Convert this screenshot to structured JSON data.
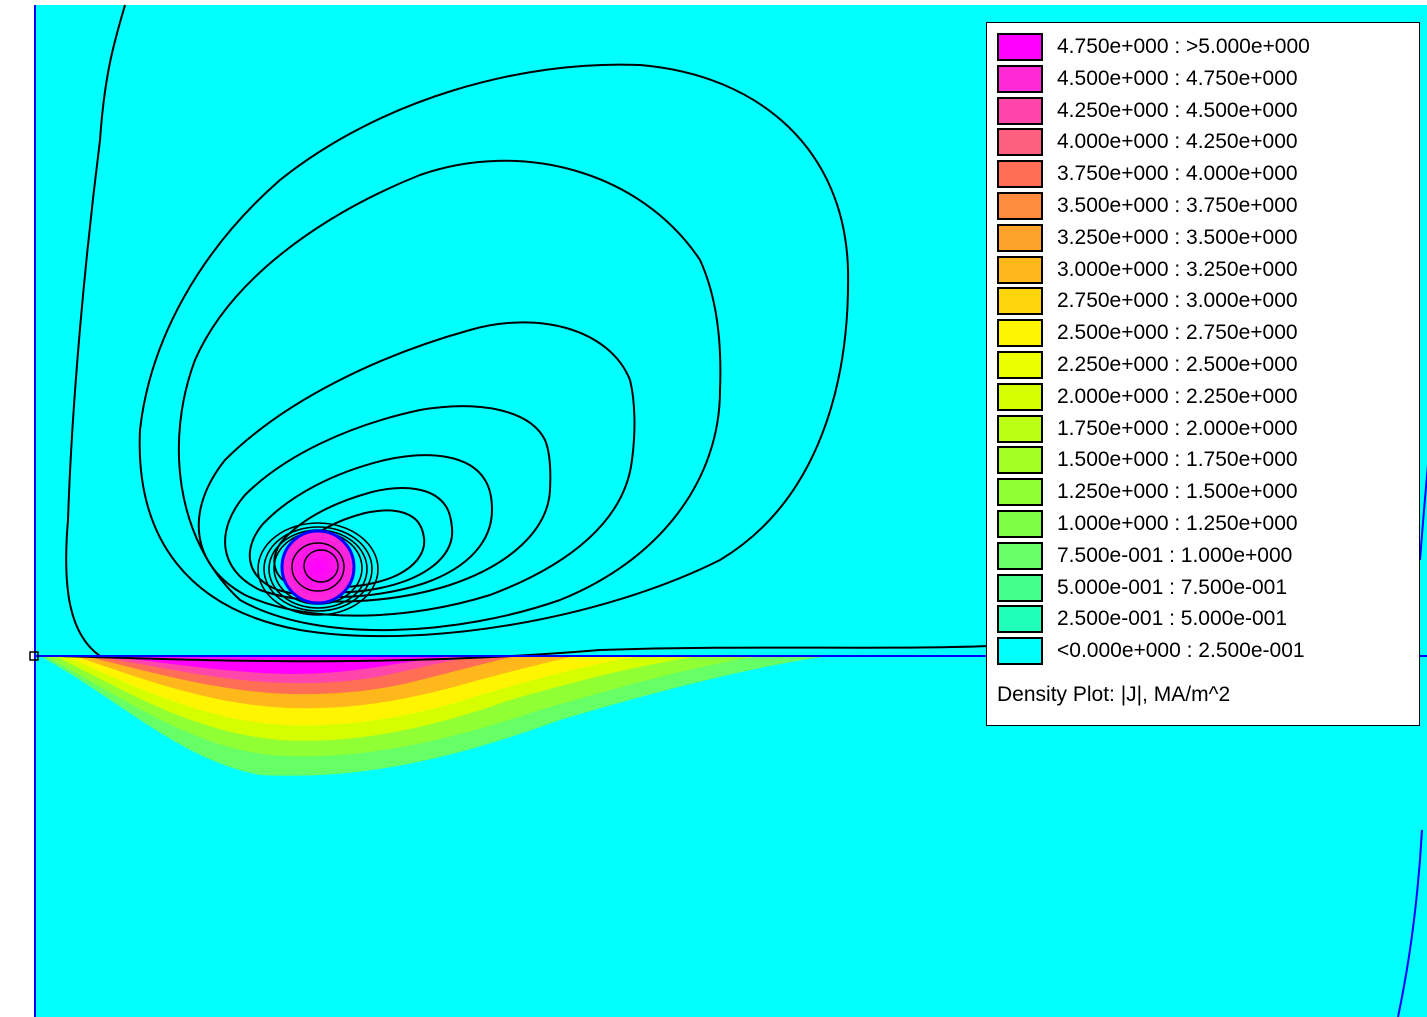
{
  "plot": {
    "background_color": "#00ffff",
    "boundary_color": "#0000ff",
    "contour_color": "#000000"
  },
  "legend": {
    "rows": [
      {
        "range": "4.750e+000 : >5.000e+000",
        "color": "#ff00ff"
      },
      {
        "range": "4.500e+000 : 4.750e+000",
        "color": "#ff2ad5"
      },
      {
        "range": "4.250e+000 : 4.500e+000",
        "color": "#ff46aa"
      },
      {
        "range": "4.000e+000 : 4.250e+000",
        "color": "#ff5f7f"
      },
      {
        "range": "3.750e+000 : 4.000e+000",
        "color": "#ff6e55"
      },
      {
        "range": "3.500e+000 : 3.750e+000",
        "color": "#ff8c3c"
      },
      {
        "range": "3.250e+000 : 3.500e+000",
        "color": "#ffa22b"
      },
      {
        "range": "3.000e+000 : 3.250e+000",
        "color": "#ffb81b"
      },
      {
        "range": "2.750e+000 : 3.000e+000",
        "color": "#ffd60b"
      },
      {
        "range": "2.500e+000 : 2.750e+000",
        "color": "#fff500"
      },
      {
        "range": "2.250e+000 : 2.500e+000",
        "color": "#eeff00"
      },
      {
        "range": "2.000e+000 : 2.250e+000",
        "color": "#d5ff00"
      },
      {
        "range": "1.750e+000 : 2.000e+000",
        "color": "#bbff14"
      },
      {
        "range": "1.500e+000 : 1.750e+000",
        "color": "#a4ff24"
      },
      {
        "range": "1.250e+000 : 1.500e+000",
        "color": "#90ff34"
      },
      {
        "range": "1.000e+000 : 1.250e+000",
        "color": "#7dff44"
      },
      {
        "range": "7.500e-001 : 1.000e+000",
        "color": "#66ff66"
      },
      {
        "range": "5.000e-001 : 7.500e-001",
        "color": "#44ff8c"
      },
      {
        "range": "2.500e-001 : 5.000e-001",
        "color": "#22ffbb"
      },
      {
        "range": "<0.000e+000 : 2.500e-001",
        "color": "#00ffff"
      }
    ],
    "caption": "Density Plot: |J|, MA/m^2"
  }
}
